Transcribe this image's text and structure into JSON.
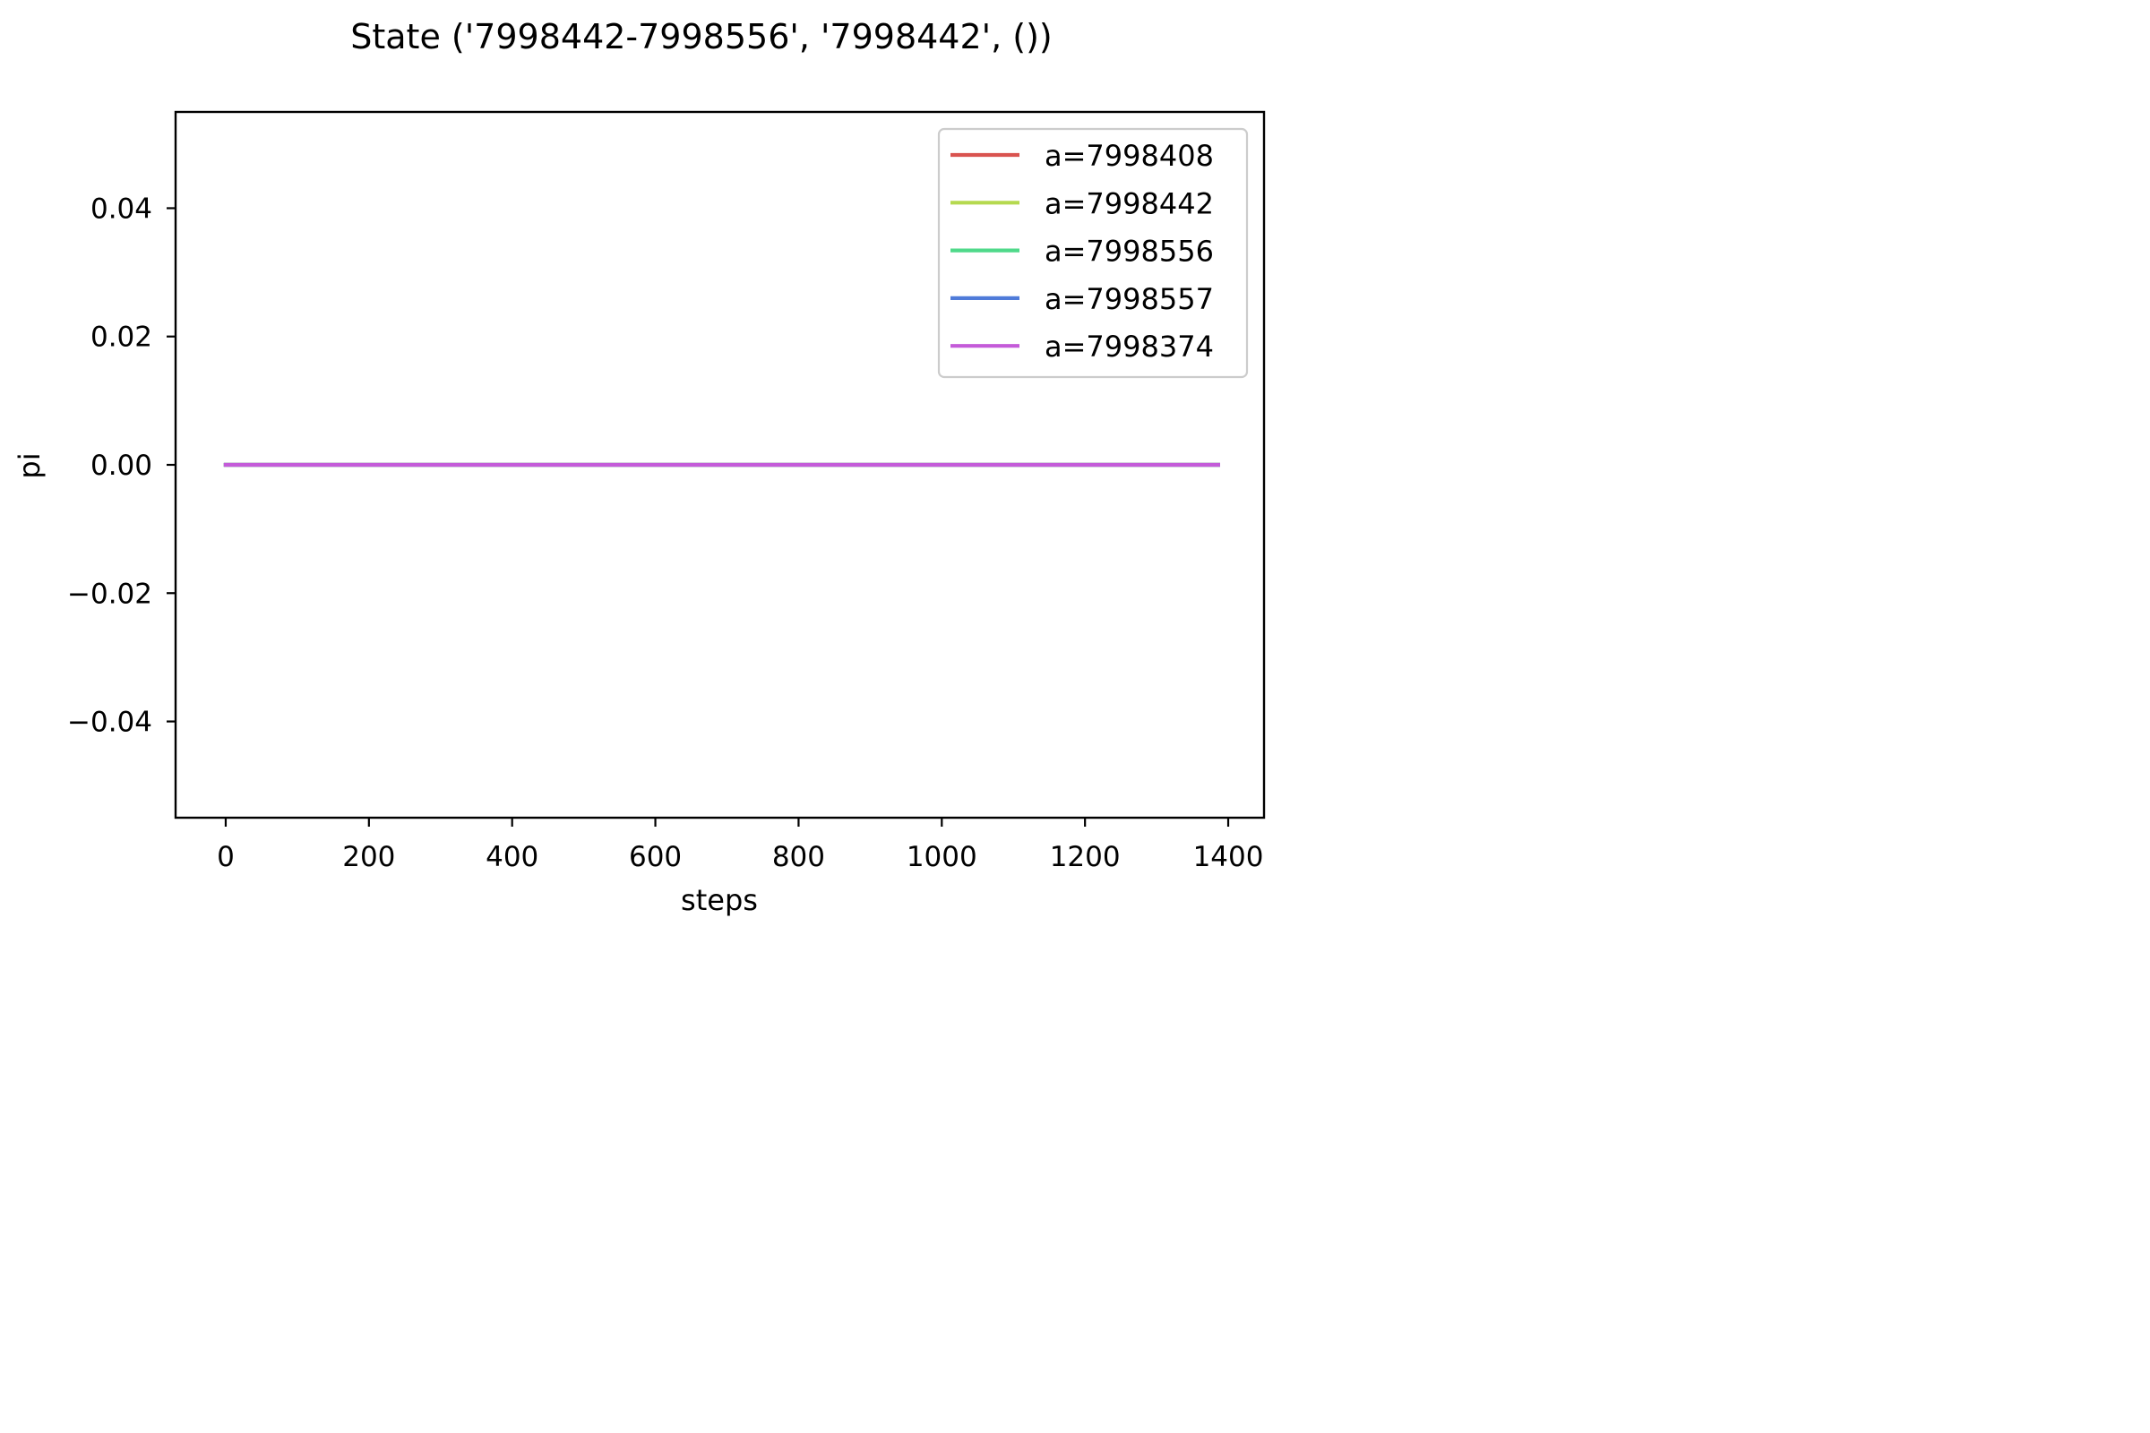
{
  "chart_data": {
    "type": "line",
    "title": "State ('7998442-7998556', '7998442', ())",
    "xlabel": "steps",
    "ylabel": "pi",
    "xlim": [
      -70,
      1450
    ],
    "ylim": [
      -0.055,
      0.055
    ],
    "xticks": [
      0,
      200,
      400,
      600,
      800,
      1000,
      1200,
      1400
    ],
    "xtick_labels": [
      "0",
      "200",
      "400",
      "600",
      "800",
      "1000",
      "1200",
      "1400"
    ],
    "yticks": [
      -0.04,
      -0.02,
      0.0,
      0.02,
      0.04
    ],
    "ytick_labels": [
      "−0.04",
      "−0.02",
      "0.00",
      "0.02",
      "0.04"
    ],
    "grid": false,
    "legend_position": "top-right",
    "x": [
      0,
      1386
    ],
    "series": [
      {
        "name": "a=7998408",
        "color": "#d9534f",
        "values": [
          0,
          0
        ]
      },
      {
        "name": "a=7998442",
        "color": "#b5d94f",
        "values": [
          0,
          0
        ]
      },
      {
        "name": "a=7998556",
        "color": "#4fd98a",
        "values": [
          0,
          0
        ]
      },
      {
        "name": "a=7998557",
        "color": "#4f7bd9",
        "values": [
          0,
          0
        ]
      },
      {
        "name": "a=7998374",
        "color": "#c45bd9",
        "values": [
          0,
          0
        ]
      }
    ]
  }
}
